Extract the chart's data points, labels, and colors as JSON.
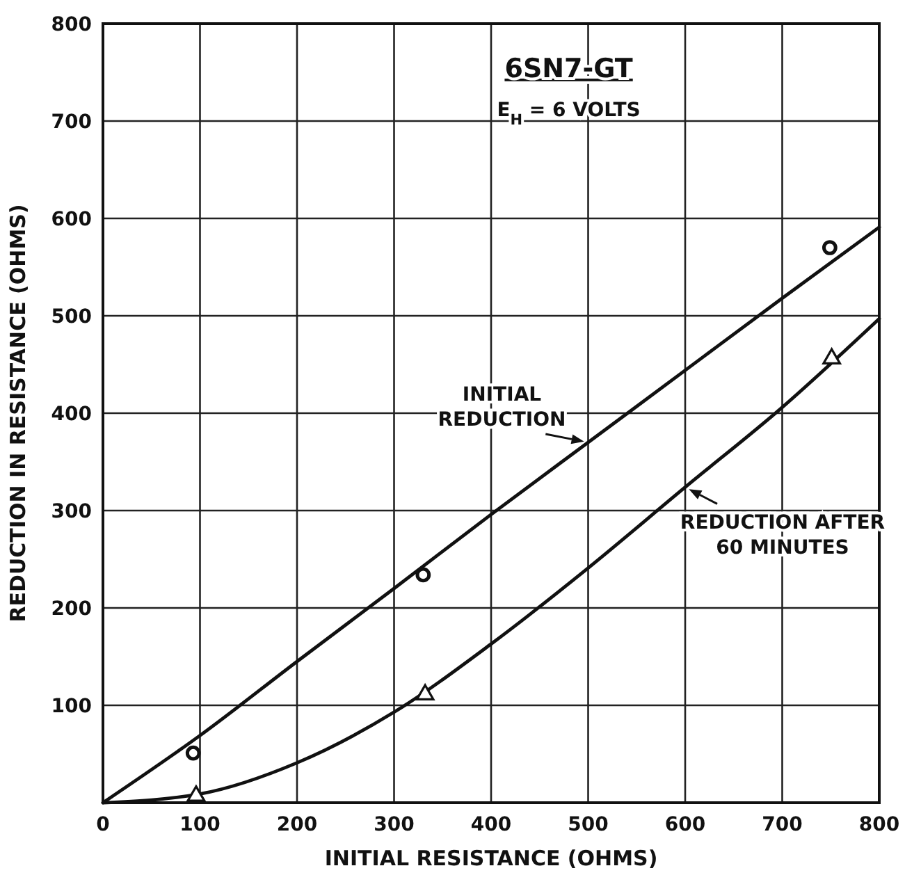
{
  "chart_data": {
    "type": "line",
    "xlabel": "INITIAL RESISTANCE (OHMS)",
    "ylabel": "REDUCTION IN RESISTANCE (OHMS)",
    "annotations": [
      "6SN7-GT",
      "E$_{H}$ = 6 VOLTS"
    ],
    "xlim": [
      0,
      800
    ],
    "ylim": [
      0,
      800
    ],
    "xticks": [
      0,
      100,
      200,
      300,
      400,
      500,
      600,
      700,
      800
    ],
    "yticks": [
      {
        "value": 0,
        "label": null
      },
      100,
      200,
      300,
      400,
      500,
      600,
      700,
      800
    ],
    "grid": true,
    "series": [
      {
        "name": "INITIAL\nREDUCTION",
        "marker": "none",
        "color": "#111111",
        "x": [
          0,
          100,
          200,
          300,
          400,
          500,
          600,
          700,
          800
        ],
        "values": [
          0,
          69,
          145,
          220,
          296,
          370,
          444,
          518,
          591
        ]
      },
      {
        "name": "REDUCTION AFTER\n60 MINUTES",
        "marker": "none",
        "color": "#111111",
        "x": [
          0,
          100,
          200,
          300,
          400,
          500,
          600,
          700,
          800
        ],
        "values": [
          0,
          9,
          41,
          93,
          163,
          241,
          324,
          406,
          497
        ]
      },
      {
        "type": "scatter",
        "marker": "circle",
        "color": "#111111",
        "x": [
          93,
          330,
          749
        ],
        "values": [
          51,
          234,
          570
        ]
      },
      {
        "type": "scatter",
        "marker": "triangle",
        "color": "#111111",
        "x": [
          96,
          332,
          751
        ],
        "values": [
          7,
          111,
          456
        ]
      }
    ]
  }
}
